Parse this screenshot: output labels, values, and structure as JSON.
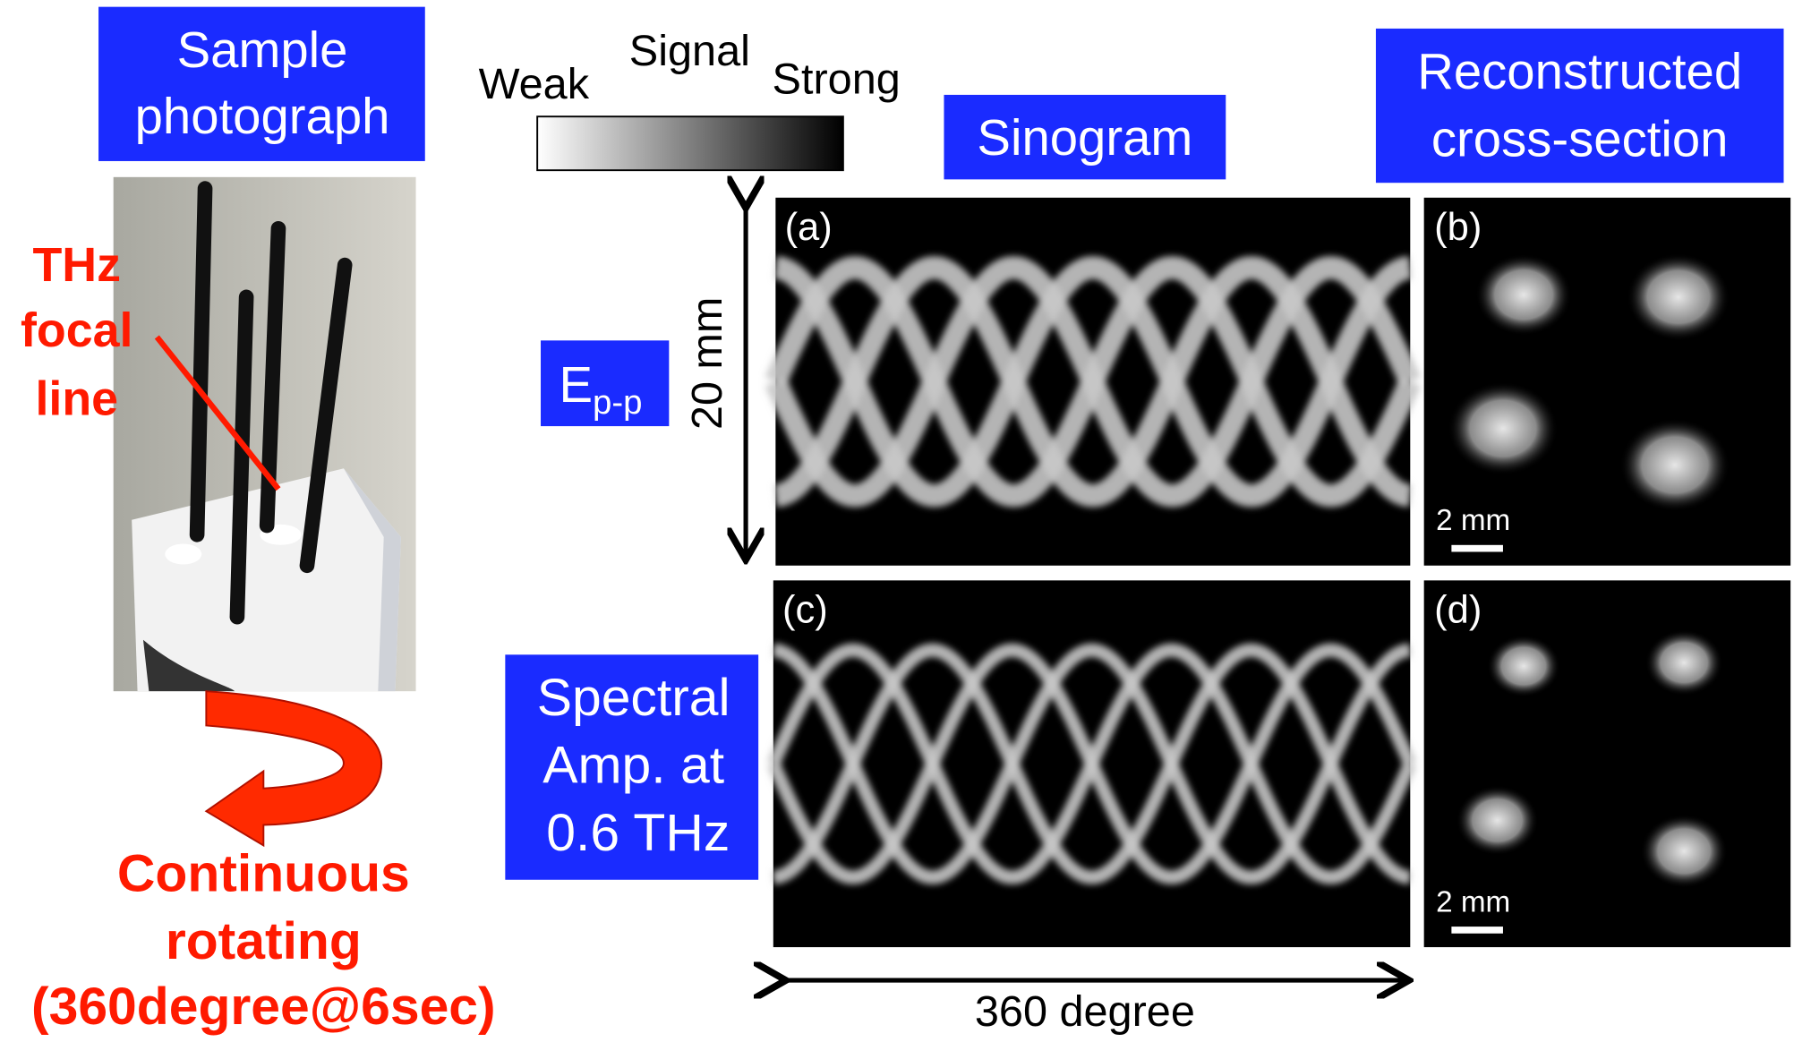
{
  "photo_label": [
    "Sample",
    "photograph"
  ],
  "colorbar": {
    "title": "Signal",
    "min_label": "Weak",
    "max_label": "Strong"
  },
  "sinogram_label": "Sinogram",
  "reconstruction_label": [
    "Reconstructed",
    "cross-section"
  ],
  "focal_annotation": [
    "THz",
    "focal",
    "line"
  ],
  "rows": [
    {
      "label_main": "E",
      "label_sub": "p-p",
      "sinogram_panel": "(a)",
      "reconstruction_panel": "(b)",
      "scale_bar": "2 mm"
    },
    {
      "label_lines": [
        "Spectral",
        "Amp. at",
        "0.6 THz"
      ],
      "sinogram_panel": "(c)",
      "reconstruction_panel": "(d)",
      "scale_bar": "2 mm"
    }
  ],
  "vertical_axis": "20 mm",
  "horizontal_axis": "360 degree",
  "rotation_annotation": [
    "Continuous",
    "rotating",
    "(360degree@6sec)"
  ]
}
